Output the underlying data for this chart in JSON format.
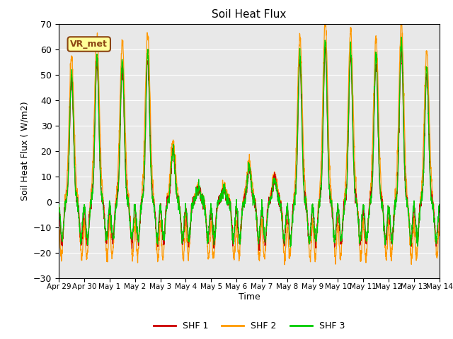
{
  "title": "Soil Heat Flux",
  "ylabel": "Soil Heat Flux ( W/m2)",
  "xlabel": "Time",
  "ylim": [
    -30,
    70
  ],
  "yticks": [
    -30,
    -20,
    -10,
    0,
    10,
    20,
    30,
    40,
    50,
    60,
    70
  ],
  "colors": {
    "SHF 1": "#cc0000",
    "SHF 2": "#ff9900",
    "SHF 3": "#00cc00"
  },
  "bg_color": "#e8e8e8",
  "annotation_text": "VR_met",
  "annotation_box_facecolor": "#ffff99",
  "annotation_box_edgecolor": "#8b4513",
  "xtick_labels": [
    "Apr 29",
    "Apr 30",
    "May 1",
    "May 2",
    "May 3",
    "May 4",
    "May 5",
    "May 6",
    "May 7",
    "May 8",
    "May 9",
    "May 10",
    "May 11",
    "May 12",
    "May 13",
    "May 14"
  ],
  "n_days": 15,
  "points_per_day": 144,
  "amp_profile": [
    48,
    55,
    53,
    56,
    20,
    5,
    5,
    13,
    9,
    55,
    60,
    57,
    55,
    60,
    50
  ],
  "seed": 42
}
